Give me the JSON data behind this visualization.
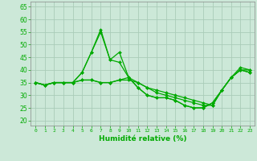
{
  "xlabel": "Humidité relative (%)",
  "background_color": "#cce8d8",
  "grid_color": "#aaccb8",
  "line_color": "#00aa00",
  "xlim": [
    -0.5,
    23.5
  ],
  "ylim": [
    18,
    67
  ],
  "xticks": [
    0,
    1,
    2,
    3,
    4,
    5,
    6,
    7,
    8,
    9,
    10,
    11,
    12,
    13,
    14,
    15,
    16,
    17,
    18,
    19,
    20,
    21,
    22,
    23
  ],
  "yticks": [
    20,
    25,
    30,
    35,
    40,
    45,
    50,
    55,
    60,
    65
  ],
  "series": [
    [
      35,
      34,
      35,
      35,
      35,
      39,
      47,
      55,
      44,
      47,
      37,
      33,
      30,
      29,
      29,
      28,
      26,
      25,
      25,
      27,
      32,
      37,
      40,
      40
    ],
    [
      35,
      34,
      35,
      35,
      35,
      39,
      47,
      56,
      44,
      43,
      37,
      33,
      30,
      29,
      29,
      28,
      26,
      25,
      25,
      27,
      32,
      37,
      41,
      40
    ],
    [
      35,
      34,
      35,
      35,
      35,
      36,
      36,
      35,
      35,
      36,
      37,
      35,
      33,
      32,
      31,
      30,
      29,
      28,
      27,
      26,
      32,
      37,
      40,
      39
    ],
    [
      35,
      34,
      35,
      35,
      35,
      36,
      36,
      35,
      35,
      36,
      36,
      35,
      33,
      31,
      30,
      29,
      28,
      27,
      26,
      26,
      32,
      37,
      40,
      39
    ]
  ]
}
